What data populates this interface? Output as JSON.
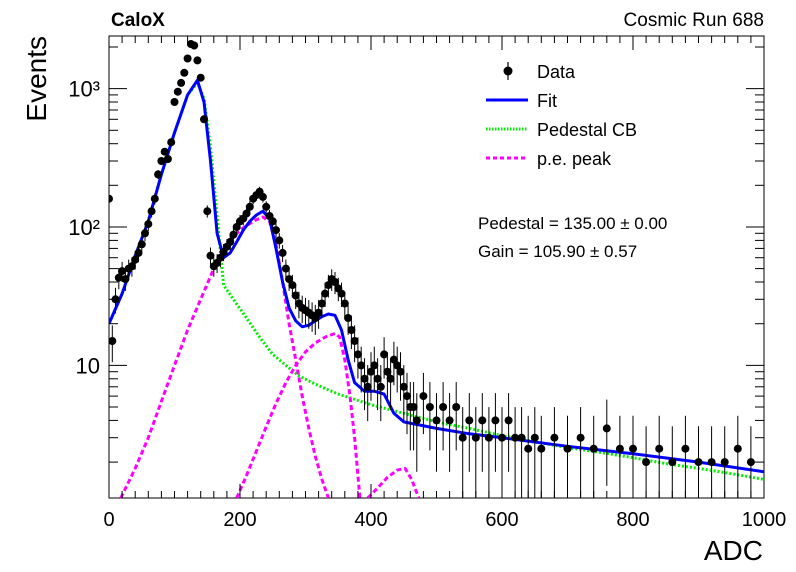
{
  "header": {
    "left_label": "CaloX",
    "right_label": "Cosmic Run 688"
  },
  "chart_data": {
    "type": "scatter",
    "xlabel": "ADC",
    "ylabel": "Events",
    "xlim": [
      0,
      1000
    ],
    "ylim": [
      1.1,
      2400
    ],
    "yscale": "log",
    "x_ticks": [
      0,
      200,
      400,
      600,
      800,
      1000
    ],
    "y_ticks": [
      {
        "value": 10,
        "label": "10"
      },
      {
        "value": 100,
        "label": "10²"
      },
      {
        "value": 1000,
        "label": "10³"
      }
    ],
    "grid": false,
    "legend_position": "top-right",
    "legend": [
      {
        "key": "data",
        "label": "Data",
        "color": "#000000",
        "style": "marker"
      },
      {
        "key": "fit",
        "label": "Fit",
        "color": "#0000ff",
        "style": "solid"
      },
      {
        "key": "pedestal",
        "label": "Pedestal CB",
        "color": "#00ee00",
        "style": "dotted"
      },
      {
        "key": "pe",
        "label": "p.e. peak",
        "color": "#ff00ff",
        "style": "dashed"
      }
    ],
    "annotations": [
      {
        "label": "Pedestal = 135.00 ± 0.00"
      },
      {
        "label": "Gain = 105.90 ± 0.57"
      }
    ],
    "fit_params": {
      "pedestal": 135.0,
      "pedestal_err": 0.0,
      "gain": 105.9,
      "gain_err": 0.57
    },
    "series": [
      {
        "key": "data",
        "name": "Data",
        "points": [
          [
            0,
            160
          ],
          [
            5,
            15
          ],
          [
            10,
            30
          ],
          [
            15,
            43
          ],
          [
            20,
            48
          ],
          [
            25,
            42
          ],
          [
            30,
            50
          ],
          [
            35,
            52
          ],
          [
            40,
            58
          ],
          [
            45,
            65
          ],
          [
            50,
            75
          ],
          [
            55,
            90
          ],
          [
            60,
            105
          ],
          [
            65,
            130
          ],
          [
            70,
            160
          ],
          [
            75,
            240
          ],
          [
            80,
            300
          ],
          [
            85,
            350
          ],
          [
            90,
            310
          ],
          [
            95,
            410
          ],
          [
            100,
            800
          ],
          [
            105,
            950
          ],
          [
            110,
            1100
          ],
          [
            115,
            1300
          ],
          [
            120,
            1650
          ],
          [
            125,
            2100
          ],
          [
            130,
            2050
          ],
          [
            135,
            1600
          ],
          [
            140,
            1200
          ],
          [
            145,
            600
          ],
          [
            150,
            130
          ],
          [
            155,
            62
          ],
          [
            160,
            52
          ],
          [
            165,
            55
          ],
          [
            170,
            60
          ],
          [
            175,
            66
          ],
          [
            180,
            72
          ],
          [
            185,
            78
          ],
          [
            190,
            88
          ],
          [
            195,
            100
          ],
          [
            200,
            110
          ],
          [
            205,
            115
          ],
          [
            210,
            125
          ],
          [
            215,
            140
          ],
          [
            220,
            160
          ],
          [
            225,
            170
          ],
          [
            230,
            180
          ],
          [
            235,
            165
          ],
          [
            240,
            140
          ],
          [
            245,
            120
          ],
          [
            250,
            110
          ],
          [
            255,
            95
          ],
          [
            260,
            80
          ],
          [
            265,
            65
          ],
          [
            270,
            50
          ],
          [
            275,
            42
          ],
          [
            280,
            38
          ],
          [
            285,
            32
          ],
          [
            290,
            28
          ],
          [
            295,
            26
          ],
          [
            300,
            25
          ],
          [
            305,
            24
          ],
          [
            310,
            23
          ],
          [
            315,
            22
          ],
          [
            320,
            24
          ],
          [
            325,
            28
          ],
          [
            330,
            33
          ],
          [
            335,
            38
          ],
          [
            340,
            42
          ],
          [
            345,
            40
          ],
          [
            350,
            36
          ],
          [
            355,
            33
          ],
          [
            360,
            28
          ],
          [
            365,
            22
          ],
          [
            370,
            18
          ],
          [
            375,
            15
          ],
          [
            380,
            12
          ],
          [
            385,
            10
          ],
          [
            390,
            8
          ],
          [
            395,
            7
          ],
          [
            400,
            9
          ],
          [
            405,
            10
          ],
          [
            410,
            8
          ],
          [
            415,
            7
          ],
          [
            420,
            12
          ],
          [
            425,
            9
          ],
          [
            430,
            8
          ],
          [
            435,
            11
          ],
          [
            440,
            10
          ],
          [
            445,
            9
          ],
          [
            450,
            7
          ],
          [
            455,
            6
          ],
          [
            460,
            5
          ],
          [
            465,
            5
          ],
          [
            470,
            4
          ],
          [
            480,
            6
          ],
          [
            490,
            5
          ],
          [
            500,
            4
          ],
          [
            510,
            5
          ],
          [
            520,
            4
          ],
          [
            530,
            5
          ],
          [
            540,
            3
          ],
          [
            550,
            4
          ],
          [
            560,
            3
          ],
          [
            570,
            4
          ],
          [
            580,
            3
          ],
          [
            590,
            4
          ],
          [
            600,
            3
          ],
          [
            610,
            4
          ],
          [
            620,
            3
          ],
          [
            630,
            3
          ],
          [
            640,
            2.5
          ],
          [
            650,
            3
          ],
          [
            660,
            2.5
          ],
          [
            680,
            3
          ],
          [
            700,
            2.5
          ],
          [
            720,
            3
          ],
          [
            740,
            2.5
          ],
          [
            760,
            3.5
          ],
          [
            780,
            2.5
          ],
          [
            800,
            2.5
          ],
          [
            820,
            2
          ],
          [
            840,
            2.5
          ],
          [
            860,
            2
          ],
          [
            880,
            2.5
          ],
          [
            900,
            2
          ],
          [
            920,
            2
          ],
          [
            940,
            2
          ],
          [
            960,
            2.5
          ],
          [
            980,
            2
          ]
        ]
      },
      {
        "key": "fit",
        "name": "Fit",
        "points": [
          [
            0,
            20
          ],
          [
            20,
            33
          ],
          [
            40,
            62
          ],
          [
            60,
            110
          ],
          [
            80,
            240
          ],
          [
            100,
            480
          ],
          [
            120,
            900
          ],
          [
            135,
            1150
          ],
          [
            145,
            800
          ],
          [
            155,
            300
          ],
          [
            165,
            90
          ],
          [
            175,
            60
          ],
          [
            185,
            65
          ],
          [
            195,
            78
          ],
          [
            205,
            95
          ],
          [
            215,
            110
          ],
          [
            225,
            122
          ],
          [
            235,
            130
          ],
          [
            245,
            115
          ],
          [
            255,
            70
          ],
          [
            265,
            40
          ],
          [
            275,
            26
          ],
          [
            285,
            21
          ],
          [
            295,
            19
          ],
          [
            305,
            19.5
          ],
          [
            315,
            21
          ],
          [
            325,
            22.5
          ],
          [
            335,
            23.5
          ],
          [
            345,
            23
          ],
          [
            355,
            18
          ],
          [
            365,
            11
          ],
          [
            375,
            7.5
          ],
          [
            390,
            6.5
          ],
          [
            405,
            6.5
          ],
          [
            420,
            6.2
          ],
          [
            435,
            4.5
          ],
          [
            450,
            3.9
          ],
          [
            500,
            3.5
          ],
          [
            550,
            3.2
          ],
          [
            600,
            3.0
          ],
          [
            700,
            2.6
          ],
          [
            800,
            2.3
          ],
          [
            900,
            2.0
          ],
          [
            1000,
            1.7
          ]
        ]
      },
      {
        "key": "pedestal",
        "name": "Pedestal CB",
        "points": [
          [
            0,
            20
          ],
          [
            20,
            33
          ],
          [
            40,
            62
          ],
          [
            60,
            110
          ],
          [
            80,
            240
          ],
          [
            100,
            480
          ],
          [
            120,
            900
          ],
          [
            135,
            1100
          ],
          [
            145,
            850
          ],
          [
            155,
            380
          ],
          [
            165,
            120
          ],
          [
            175,
            38
          ],
          [
            190,
            30
          ],
          [
            210,
            22
          ],
          [
            230,
            16
          ],
          [
            250,
            12
          ],
          [
            270,
            10
          ],
          [
            290,
            8.4
          ],
          [
            310,
            7.5
          ],
          [
            330,
            6.8
          ],
          [
            350,
            6.2
          ],
          [
            400,
            5.2
          ],
          [
            450,
            4.5
          ],
          [
            500,
            3.9
          ],
          [
            550,
            3.5
          ],
          [
            600,
            3.1
          ],
          [
            650,
            2.8
          ],
          [
            700,
            2.55
          ],
          [
            750,
            2.35
          ],
          [
            800,
            2.15
          ],
          [
            850,
            1.95
          ],
          [
            900,
            1.8
          ],
          [
            950,
            1.65
          ],
          [
            1000,
            1.5
          ]
        ]
      },
      {
        "key": "pe1",
        "name": "p.e. peak",
        "points": [
          [
            18,
            1.1
          ],
          [
            40,
            1.8
          ],
          [
            60,
            3
          ],
          [
            80,
            5.5
          ],
          [
            100,
            10
          ],
          [
            120,
            18
          ],
          [
            140,
            30
          ],
          [
            160,
            50
          ],
          [
            180,
            75
          ],
          [
            200,
            95
          ],
          [
            220,
            110
          ],
          [
            235,
            118
          ],
          [
            245,
            110
          ],
          [
            255,
            75
          ],
          [
            265,
            40
          ],
          [
            275,
            20
          ],
          [
            285,
            11
          ],
          [
            295,
            6
          ],
          [
            305,
            3.5
          ],
          [
            315,
            2.2
          ],
          [
            325,
            1.5
          ],
          [
            335,
            1.1
          ]
        ]
      },
      {
        "key": "pe2",
        "name": "p.e. peak",
        "points": [
          [
            195,
            1.1
          ],
          [
            210,
            1.6
          ],
          [
            225,
            2.4
          ],
          [
            240,
            3.6
          ],
          [
            255,
            5.3
          ],
          [
            270,
            7.5
          ],
          [
            285,
            10
          ],
          [
            300,
            12.5
          ],
          [
            315,
            14.5
          ],
          [
            330,
            16
          ],
          [
            345,
            17
          ],
          [
            352,
            16
          ],
          [
            360,
            11
          ],
          [
            368,
            6
          ],
          [
            375,
            3
          ],
          [
            380,
            1.6
          ],
          [
            383,
            1.1
          ]
        ]
      },
      {
        "key": "pe3",
        "name": "p.e. peak",
        "points": [
          [
            395,
            1.1
          ],
          [
            410,
            1.3
          ],
          [
            425,
            1.55
          ],
          [
            440,
            1.75
          ],
          [
            452,
            1.8
          ],
          [
            462,
            1.5
          ],
          [
            470,
            1.2
          ],
          [
            473,
            1.1
          ]
        ]
      }
    ]
  }
}
